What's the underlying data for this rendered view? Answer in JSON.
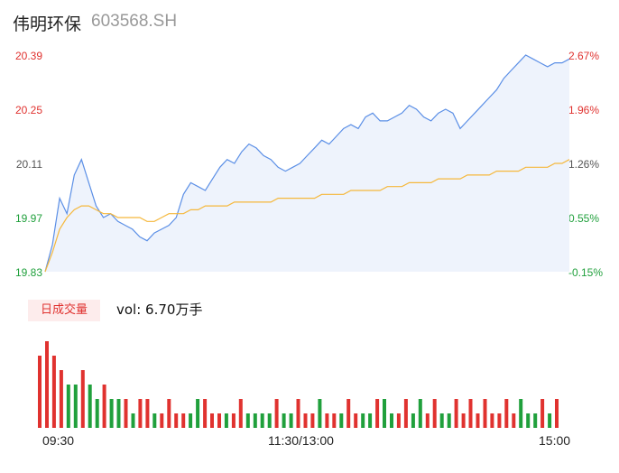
{
  "header": {
    "name": "伟明环保",
    "code": "603568.SH"
  },
  "badge": "日成交量",
  "volume_text": "vol: 6.70万手",
  "colors": {
    "price_line": "#5b8fe6",
    "avg_line": "#f5b83c",
    "up": "#e0322f",
    "down": "#20a03c",
    "area": "#eef3fc"
  },
  "chart_data": {
    "type": "line",
    "y_left_ticks": [
      "20.39",
      "20.25",
      "20.11",
      "19.97",
      "19.83"
    ],
    "y_right_ticks": [
      "2.67%",
      "1.96%",
      "1.26%",
      "0.55%",
      "-0.15%"
    ],
    "ylim": [
      19.83,
      20.39
    ],
    "x_ticks": [
      "09:30",
      "11:30/13:00",
      "15:00"
    ],
    "series": [
      {
        "name": "price",
        "values": [
          19.83,
          19.9,
          20.02,
          19.98,
          20.08,
          20.12,
          20.06,
          20.0,
          19.97,
          19.98,
          19.96,
          19.95,
          19.94,
          19.92,
          19.91,
          19.93,
          19.94,
          19.95,
          19.97,
          20.03,
          20.06,
          20.05,
          20.04,
          20.07,
          20.1,
          20.12,
          20.11,
          20.14,
          20.16,
          20.15,
          20.13,
          20.12,
          20.1,
          20.09,
          20.1,
          20.11,
          20.13,
          20.15,
          20.17,
          20.16,
          20.18,
          20.2,
          20.21,
          20.2,
          20.23,
          20.24,
          20.22,
          20.22,
          20.23,
          20.24,
          20.26,
          20.25,
          20.23,
          20.22,
          20.24,
          20.25,
          20.24,
          20.2,
          20.22,
          20.24,
          20.26,
          20.28,
          20.3,
          20.33,
          20.35,
          20.37,
          20.39,
          20.38,
          20.37,
          20.36,
          20.37,
          20.37,
          20.38
        ]
      },
      {
        "name": "avg",
        "values": [
          19.83,
          19.88,
          19.94,
          19.97,
          19.99,
          20.0,
          20.0,
          19.99,
          19.98,
          19.98,
          19.97,
          19.97,
          19.97,
          19.97,
          19.96,
          19.96,
          19.97,
          19.98,
          19.98,
          19.98,
          19.99,
          19.99,
          20.0,
          20.0,
          20.0,
          20.0,
          20.01,
          20.01,
          20.01,
          20.01,
          20.01,
          20.01,
          20.02,
          20.02,
          20.02,
          20.02,
          20.02,
          20.02,
          20.03,
          20.03,
          20.03,
          20.03,
          20.04,
          20.04,
          20.04,
          20.04,
          20.04,
          20.05,
          20.05,
          20.05,
          20.06,
          20.06,
          20.06,
          20.06,
          20.07,
          20.07,
          20.07,
          20.07,
          20.08,
          20.08,
          20.08,
          20.08,
          20.09,
          20.09,
          20.09,
          20.09,
          20.1,
          20.1,
          20.1,
          20.1,
          20.11,
          20.11,
          20.12
        ]
      },
      {
        "name": "volume",
        "values": [
          5,
          6,
          5,
          4,
          3,
          3,
          4,
          3,
          2,
          3,
          2,
          2,
          2,
          1,
          2,
          2,
          1,
          1,
          2,
          1,
          1,
          1,
          2,
          2,
          1,
          1,
          1,
          1,
          2,
          1,
          1,
          1,
          1,
          2,
          1,
          1,
          2,
          1,
          1,
          2,
          1,
          1,
          1,
          2,
          1,
          1,
          1,
          2,
          2,
          1,
          1,
          2,
          1,
          2,
          1,
          2,
          1,
          1,
          2,
          1,
          2,
          1,
          2,
          1,
          1,
          2,
          1,
          2,
          1,
          1,
          2,
          1,
          2
        ],
        "directions": [
          1,
          1,
          1,
          1,
          0,
          0,
          1,
          0,
          0,
          1,
          0,
          0,
          1,
          0,
          1,
          1,
          0,
          1,
          1,
          1,
          1,
          0,
          0,
          1,
          1,
          1,
          0,
          1,
          1,
          0,
          0,
          0,
          0,
          1,
          0,
          0,
          1,
          1,
          1,
          0,
          1,
          1,
          0,
          1,
          1,
          0,
          0,
          1,
          0,
          0,
          1,
          1,
          0,
          0,
          1,
          1,
          0,
          0,
          1,
          1,
          1,
          1,
          1,
          1,
          1,
          1,
          1,
          0,
          0,
          0,
          1,
          0,
          1
        ]
      }
    ]
  }
}
